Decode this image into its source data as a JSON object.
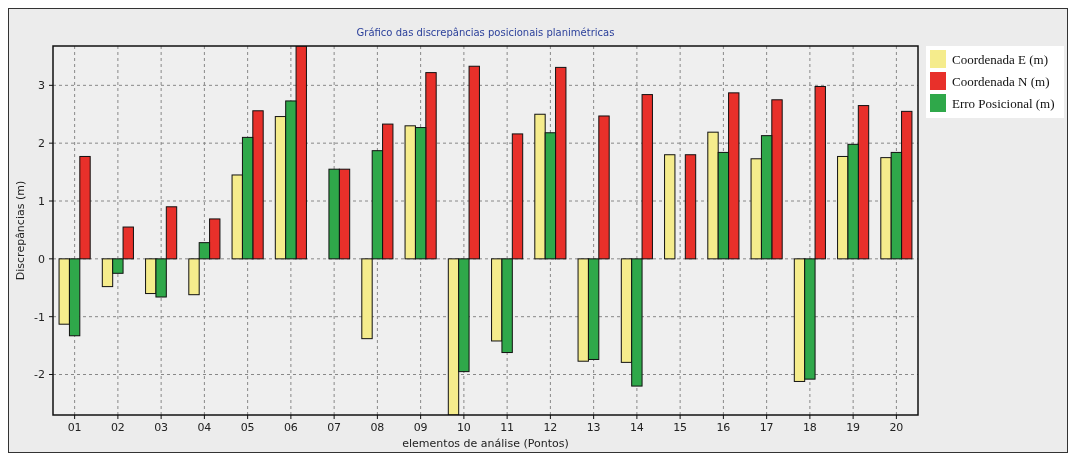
{
  "chart_data": {
    "type": "bar",
    "title": "Gráfico das discrepâncias posicionais planimétricas",
    "xlabel": "elementos de análise (Pontos)",
    "ylabel": "Discrepâncias (m)",
    "categories": [
      "01",
      "02",
      "03",
      "04",
      "05",
      "06",
      "07",
      "08",
      "09",
      "10",
      "11",
      "12",
      "13",
      "14",
      "15",
      "16",
      "17",
      "18",
      "19",
      "20"
    ],
    "series": [
      {
        "name": "Coordenada E (m)",
        "color": "#f5ec8c",
        "values": [
          -1.13,
          -0.48,
          -0.6,
          -0.62,
          1.45,
          2.46,
          0,
          -1.38,
          2.3,
          -2.7,
          -1.42,
          2.5,
          -1.77,
          -1.79,
          1.8,
          2.19,
          1.73,
          -2.12,
          1.77,
          1.75
        ]
      },
      {
        "name": "Coordenada N (m)",
        "color": "#e8302a",
        "values": [
          1.77,
          0.55,
          0.9,
          0.69,
          2.56,
          3.68,
          1.55,
          2.33,
          3.22,
          3.33,
          2.16,
          3.31,
          2.47,
          2.84,
          1.8,
          2.87,
          2.75,
          2.98,
          2.65,
          2.55
        ]
      },
      {
        "name": "Erro Posicional (m)",
        "color": "#2fa84a",
        "values": [
          -1.33,
          -0.25,
          -0.66,
          0.28,
          2.1,
          2.73,
          1.55,
          1.87,
          2.27,
          -1.95,
          -1.62,
          2.18,
          -1.74,
          -2.2,
          0,
          1.84,
          2.13,
          -2.08,
          1.98,
          1.84
        ]
      }
    ],
    "ylim": [
      -2.7,
      3.68
    ],
    "yticks": [
      -2,
      -1,
      0,
      1,
      2,
      3
    ],
    "grid": true,
    "legend": "top right"
  }
}
